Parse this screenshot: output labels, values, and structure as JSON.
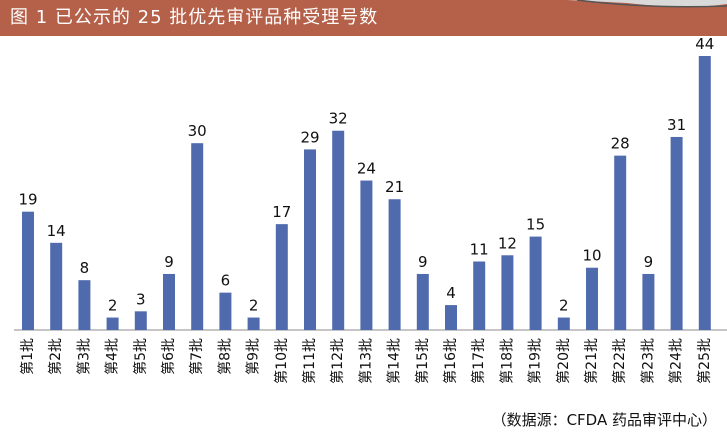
{
  "header": {
    "title": "图 1    已公示的 25 批优先审评品种受理号数"
  },
  "footer": {
    "source": "（数据源：CFDA 药品审评中心）"
  },
  "colors": {
    "bar": "#4f6bae",
    "title_bg": "#b5614a",
    "axis": "#8c8c8c"
  },
  "chart_data": {
    "type": "bar",
    "title": "已公示的 25 批优先审评品种受理号数",
    "categories": [
      "第1批",
      "第2批",
      "第3批",
      "第4批",
      "第5批",
      "第6批",
      "第7批",
      "第8批",
      "第9批",
      "第10批",
      "第11批",
      "第12批",
      "第13批",
      "第14批",
      "第15批",
      "第16批",
      "第17批",
      "第18批",
      "第19批",
      "第20批",
      "第21批",
      "第22批",
      "第23批",
      "第24批",
      "第25批"
    ],
    "values": [
      19,
      14,
      8,
      2,
      3,
      9,
      30,
      6,
      2,
      17,
      29,
      32,
      24,
      21,
      9,
      4,
      11,
      12,
      15,
      2,
      10,
      28,
      9,
      31,
      44
    ],
    "xlabel": "",
    "ylabel": "",
    "ylim": [
      0,
      44
    ],
    "data_labels": true,
    "grid": false
  }
}
